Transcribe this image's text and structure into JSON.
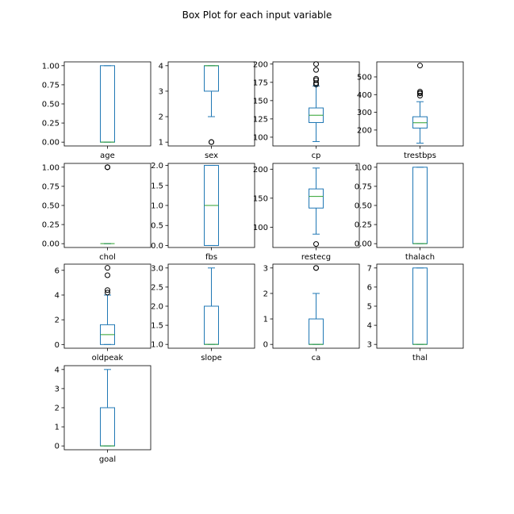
{
  "figure": {
    "title": "Box Plot for each input variable",
    "box_color": "#1f77b4",
    "median_color": "#2ca02c",
    "frame_color": "#000000"
  },
  "chart_data": [
    {
      "type": "box",
      "xlabel": "age",
      "ylim": [
        -0.05,
        1.05
      ],
      "ticks": [
        0,
        0.25,
        0.5,
        0.75,
        1
      ],
      "tick_labels": [
        "0.00",
        "0.25",
        "0.50",
        "0.75",
        "1.00"
      ],
      "box": {
        "whislo": 0,
        "q1": 0,
        "med": 0,
        "q3": 1,
        "whishi": 1,
        "fliers": []
      }
    },
    {
      "type": "box",
      "xlabel": "sex",
      "ylim": [
        0.85,
        4.15
      ],
      "ticks": [
        1,
        2,
        3,
        4
      ],
      "tick_labels": [
        "1",
        "2",
        "3",
        "4"
      ],
      "box": {
        "whislo": 2,
        "q1": 3,
        "med": 4,
        "q3": 4,
        "whishi": 4,
        "fliers": [
          1,
          1
        ]
      }
    },
    {
      "type": "box",
      "xlabel": "cp",
      "ylim": [
        88,
        203
      ],
      "ticks": [
        100,
        125,
        150,
        175,
        200
      ],
      "tick_labels": [
        "100",
        "125",
        "150",
        "175",
        "200"
      ],
      "box": {
        "whislo": 94,
        "q1": 120,
        "med": 130,
        "q3": 140,
        "whishi": 170,
        "fliers": [
          172,
          174,
          178,
          180,
          192,
          200
        ]
      }
    },
    {
      "type": "box",
      "xlabel": "trestbps",
      "ylim": [
        110,
        585
      ],
      "ticks": [
        200,
        300,
        400,
        500
      ],
      "tick_labels": [
        "200",
        "300",
        "400",
        "500"
      ],
      "box": {
        "whislo": 126,
        "q1": 211,
        "med": 241,
        "q3": 275,
        "whishi": 360,
        "fliers": [
          394,
          407,
          409,
          417,
          564
        ]
      }
    },
    {
      "type": "box",
      "xlabel": "chol",
      "ylim": [
        -0.05,
        1.05
      ],
      "ticks": [
        0,
        0.25,
        0.5,
        0.75,
        1
      ],
      "tick_labels": [
        "0.00",
        "0.25",
        "0.50",
        "0.75",
        "1.00"
      ],
      "box": {
        "whislo": 0,
        "q1": 0,
        "med": 0,
        "q3": 0,
        "whishi": 0,
        "fliers": [
          1,
          1,
          1
        ]
      }
    },
    {
      "type": "box",
      "xlabel": "fbs",
      "ylim": [
        -0.05,
        2.05
      ],
      "ticks": [
        0,
        0.5,
        1,
        1.5,
        2
      ],
      "tick_labels": [
        "0.0",
        "0.5",
        "1.0",
        "1.5",
        "2.0"
      ],
      "box": {
        "whislo": 0,
        "q1": 0,
        "med": 1,
        "q3": 2,
        "whishi": 2,
        "fliers": []
      }
    },
    {
      "type": "box",
      "xlabel": "restecg",
      "ylim": [
        65,
        210
      ],
      "ticks": [
        100,
        150,
        200
      ],
      "tick_labels": [
        "100",
        "150",
        "200"
      ],
      "box": {
        "whislo": 88,
        "q1": 133,
        "med": 153,
        "q3": 166,
        "whishi": 202,
        "fliers": [
          71
        ]
      }
    },
    {
      "type": "box",
      "xlabel": "thalach",
      "ylim": [
        -0.05,
        1.05
      ],
      "ticks": [
        0,
        0.25,
        0.5,
        0.75,
        1
      ],
      "tick_labels": [
        "0.00",
        "0.25",
        "0.50",
        "0.75",
        "1.00"
      ],
      "box": {
        "whislo": 0,
        "q1": 0,
        "med": 0,
        "q3": 1,
        "whishi": 1,
        "fliers": []
      }
    },
    {
      "type": "box",
      "xlabel": "oldpeak",
      "ylim": [
        -0.3,
        6.5
      ],
      "ticks": [
        0,
        2,
        4,
        6
      ],
      "tick_labels": [
        "0",
        "2",
        "4",
        "6"
      ],
      "box": {
        "whislo": 0,
        "q1": 0,
        "med": 0.8,
        "q3": 1.6,
        "whishi": 4,
        "fliers": [
          4.2,
          4.4,
          5.6,
          6.2
        ]
      }
    },
    {
      "type": "box",
      "xlabel": "slope",
      "ylim": [
        0.9,
        3.1
      ],
      "ticks": [
        1,
        1.5,
        2,
        2.5,
        3
      ],
      "tick_labels": [
        "1.0",
        "1.5",
        "2.0",
        "2.5",
        "3.0"
      ],
      "box": {
        "whislo": 1,
        "q1": 1,
        "med": 1,
        "q3": 2,
        "whishi": 3,
        "fliers": []
      }
    },
    {
      "type": "box",
      "xlabel": "ca",
      "ylim": [
        -0.15,
        3.15
      ],
      "ticks": [
        0,
        1,
        2,
        3
      ],
      "tick_labels": [
        "0",
        "1",
        "2",
        "3"
      ],
      "box": {
        "whislo": 0,
        "q1": 0,
        "med": 0,
        "q3": 1,
        "whishi": 2,
        "fliers": [
          3,
          3
        ]
      }
    },
    {
      "type": "box",
      "xlabel": "thal",
      "ylim": [
        2.8,
        7.2
      ],
      "ticks": [
        3,
        4,
        5,
        6,
        7
      ],
      "tick_labels": [
        "3",
        "4",
        "5",
        "6",
        "7"
      ],
      "box": {
        "whislo": 3,
        "q1": 3,
        "med": 3,
        "q3": 7,
        "whishi": 7,
        "fliers": []
      }
    },
    {
      "type": "box",
      "xlabel": "goal",
      "ylim": [
        -0.2,
        4.2
      ],
      "ticks": [
        0,
        1,
        2,
        3,
        4
      ],
      "tick_labels": [
        "0",
        "1",
        "2",
        "3",
        "4"
      ],
      "box": {
        "whislo": 0,
        "q1": 0,
        "med": 0,
        "q3": 2,
        "whishi": 4,
        "fliers": []
      }
    }
  ]
}
